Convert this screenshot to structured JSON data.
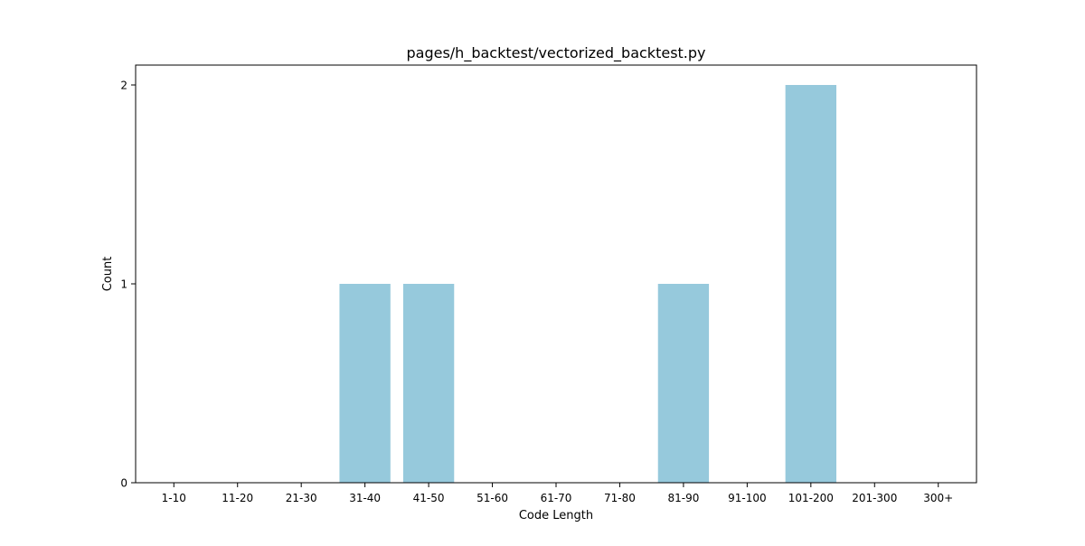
{
  "chart_data": {
    "type": "bar",
    "title": "pages/h_backtest/vectorized_backtest.py",
    "xlabel": "Code Length",
    "ylabel": "Count",
    "categories": [
      "1-10",
      "11-20",
      "21-30",
      "31-40",
      "41-50",
      "51-60",
      "61-70",
      "71-80",
      "81-90",
      "91-100",
      "101-200",
      "201-300",
      "300+"
    ],
    "values": [
      0,
      0,
      0,
      1,
      1,
      0,
      0,
      0,
      1,
      0,
      2,
      0,
      0
    ],
    "yticks": [
      0,
      1,
      2
    ],
    "ylim": [
      0,
      2.1
    ],
    "grid": false,
    "bar_color": "#96c9dc"
  }
}
